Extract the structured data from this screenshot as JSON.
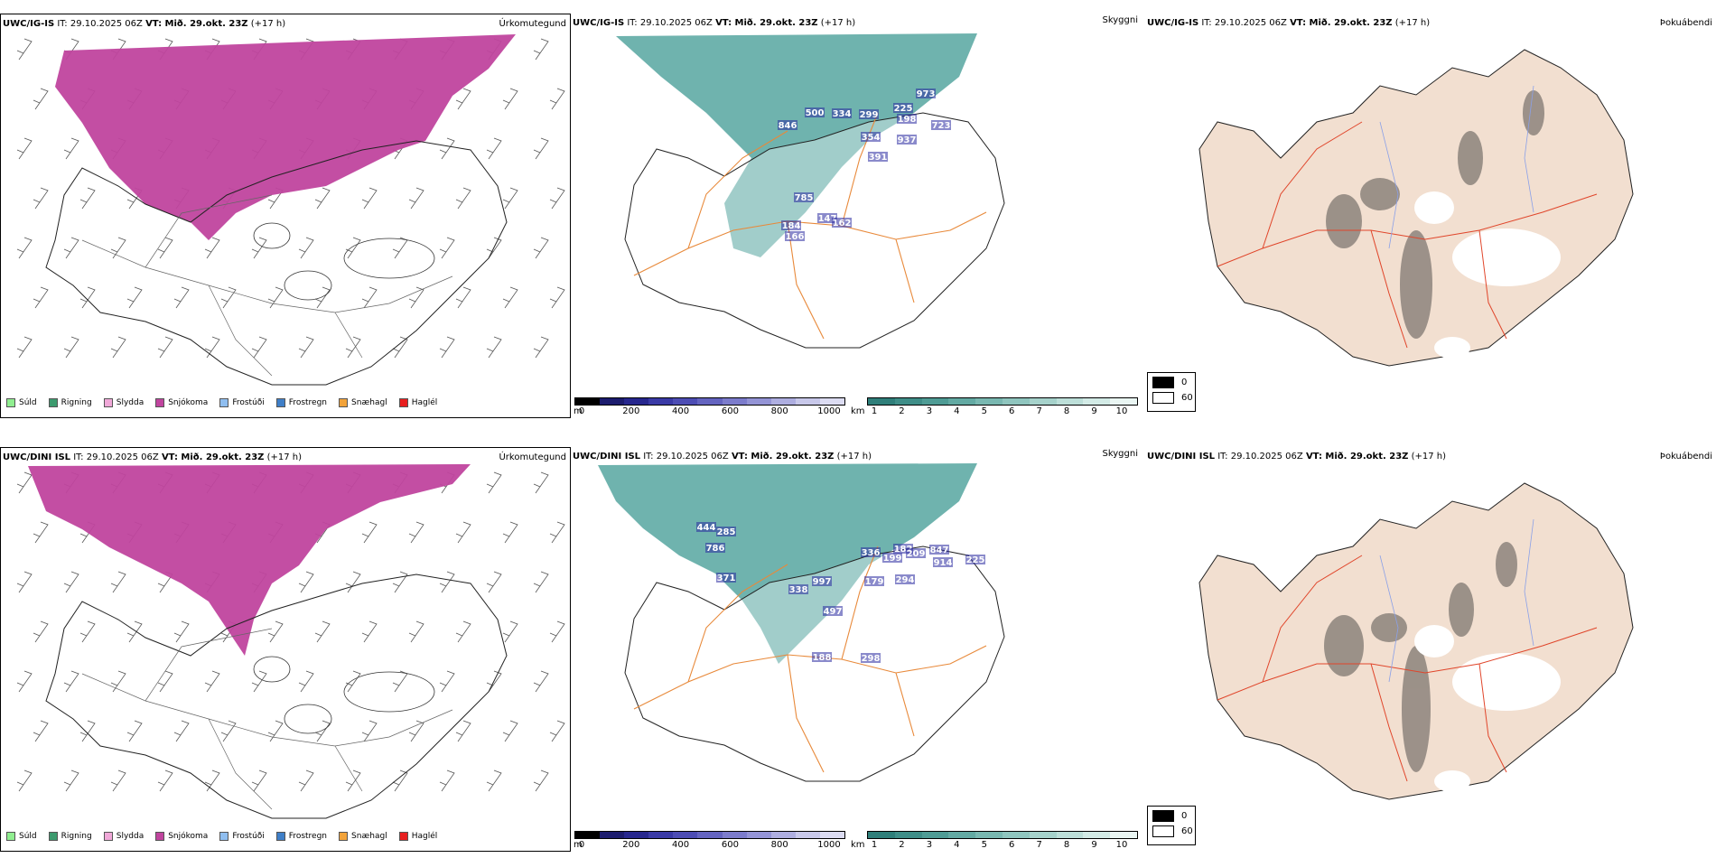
{
  "rows": [
    {
      "model": "UWC/IG-IS",
      "it": "IT: 29.10.2025 06Z",
      "vt": "VT: Mið. 29.okt. 23Z",
      "lead": "(+17 h)"
    },
    {
      "model": "UWC/DINI ISL",
      "it": "IT: 29.10.2025 06Z",
      "vt": "VT: Mið. 29.okt. 23Z",
      "lead": "(+17 h)"
    }
  ],
  "panel_names": {
    "precip_type": "Úrkomutegund",
    "visibility": "Skyggni",
    "fog": "Þokuábendi"
  },
  "precip_legend": [
    {
      "label": "Súld",
      "color": "#90ee90"
    },
    {
      "label": "Rigning",
      "color": "#3c9a6e"
    },
    {
      "label": "Slydda",
      "color": "#f0a8d8"
    },
    {
      "label": "Snjókoma",
      "color": "#c0449e"
    },
    {
      "label": "Frostúði",
      "color": "#8fbef0"
    },
    {
      "label": "Frostregn",
      "color": "#3f7fc8"
    },
    {
      "label": "Snæhagl",
      "color": "#f2a33a"
    },
    {
      "label": "Haglél",
      "color": "#e81f1f"
    }
  ],
  "visibility_m_scale": {
    "unit": "m",
    "ticks": [
      "0",
      "200",
      "400",
      "600",
      "800",
      "1000"
    ],
    "colors": [
      "#000000",
      "#1c1c6e",
      "#27278e",
      "#3a3aa6",
      "#4d4db4",
      "#6464c0",
      "#7c7ccc",
      "#9494d6",
      "#aeaee0",
      "#c8c8ea",
      "#dcdcf2"
    ]
  },
  "visibility_km_scale": {
    "unit": "km",
    "ticks": [
      "1",
      "2",
      "3",
      "4",
      "5",
      "6",
      "7",
      "8",
      "9",
      "10"
    ],
    "colors": [
      "#2f7f7a",
      "#3f8e88",
      "#4f9c95",
      "#63aaa3",
      "#79b8b1",
      "#8fc5be",
      "#a6d2cb",
      "#bddfd9",
      "#d3ebe6",
      "#eaf6f3"
    ]
  },
  "fog_legend": [
    {
      "label": "0",
      "color": "#000000"
    },
    {
      "label": "60",
      "color": "#ffffff"
    }
  ],
  "visibility_labels": [
    [
      "500",
      "846",
      "334",
      "299",
      "225",
      "198",
      "973",
      "723",
      "354",
      "937",
      "391",
      "785",
      "147",
      "184",
      "166",
      "162"
    ],
    [
      "444",
      "285",
      "786",
      "371",
      "997",
      "338",
      "336",
      "199",
      "182",
      "209",
      "847",
      "914",
      "225",
      "294",
      "179",
      "497",
      "188",
      "298"
    ]
  ],
  "colors": {
    "land_fill": "#f2dfd0",
    "roads_orange": "#e8893a",
    "roads_red": "#e0452a",
    "rivers": "#8aa0e8",
    "snow": "#c0449e",
    "vis_teal": "#3f9a93",
    "vis_blue": "#2a2aa0"
  }
}
